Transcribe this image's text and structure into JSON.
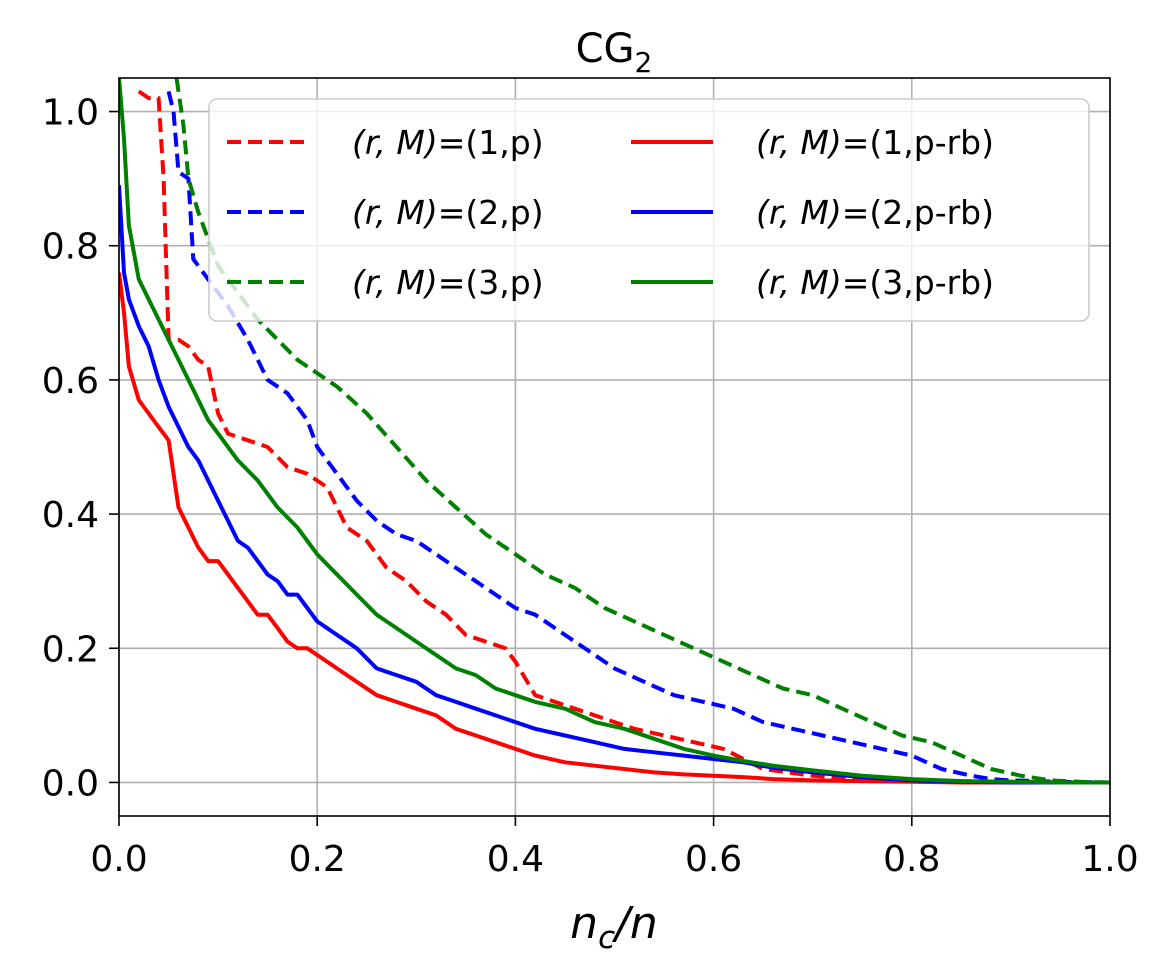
{
  "chart_data": {
    "type": "line",
    "title_base": "CG",
    "title_sub": "2",
    "xlabel_base": "n",
    "xlabel_sub": "c",
    "xlabel_tail": "/n",
    "ylabel": "",
    "xlim": [
      0.0,
      1.0
    ],
    "ylim": [
      -0.05,
      1.05
    ],
    "grid": true,
    "legend_position": "top-right",
    "legend_columns": 2,
    "xticks": [
      0.0,
      0.2,
      0.4,
      0.6,
      0.8,
      1.0
    ],
    "yticks": [
      0.0,
      0.2,
      0.4,
      0.6,
      0.8,
      1.0
    ],
    "xtick_labels": [
      "0.0",
      "0.2",
      "0.4",
      "0.6",
      "0.8",
      "1.0"
    ],
    "ytick_labels": [
      "0.0",
      "0.2",
      "0.4",
      "0.6",
      "0.8",
      "1.0"
    ],
    "series": [
      {
        "name": "(r,M)=(1,p)",
        "legend_math": "(r, M)",
        "legend_tail": "=(1,p)",
        "color": "#ff0000",
        "style": "dashed",
        "x": [
          0.02,
          0.03,
          0.04,
          0.045,
          0.05,
          0.06,
          0.07,
          0.08,
          0.09,
          0.1,
          0.11,
          0.13,
          0.15,
          0.17,
          0.19,
          0.21,
          0.23,
          0.25,
          0.27,
          0.29,
          0.31,
          0.33,
          0.35,
          0.37,
          0.39,
          0.4,
          0.42,
          0.44,
          0.46,
          0.48,
          0.5,
          0.52,
          0.55,
          0.58,
          0.61,
          0.65,
          0.7,
          0.75,
          0.8,
          0.85,
          0.9,
          0.95,
          1.0
        ],
        "y": [
          1.03,
          1.02,
          1.02,
          0.9,
          0.66,
          0.66,
          0.65,
          0.63,
          0.62,
          0.55,
          0.52,
          0.51,
          0.5,
          0.47,
          0.46,
          0.44,
          0.38,
          0.36,
          0.32,
          0.3,
          0.27,
          0.25,
          0.22,
          0.21,
          0.2,
          0.18,
          0.13,
          0.12,
          0.11,
          0.1,
          0.09,
          0.08,
          0.07,
          0.06,
          0.05,
          0.02,
          0.01,
          0.005,
          0.003,
          0.002,
          0.001,
          0.0,
          0.0
        ]
      },
      {
        "name": "(r,M)=(2,p)",
        "legend_math": "(r, M)",
        "legend_tail": "=(2,p)",
        "color": "#0000ff",
        "style": "dashed",
        "x": [
          0.05,
          0.055,
          0.06,
          0.07,
          0.075,
          0.08,
          0.09,
          0.1,
          0.11,
          0.13,
          0.15,
          0.17,
          0.19,
          0.2,
          0.22,
          0.24,
          0.26,
          0.28,
          0.3,
          0.32,
          0.34,
          0.36,
          0.38,
          0.4,
          0.42,
          0.44,
          0.46,
          0.48,
          0.5,
          0.53,
          0.56,
          0.59,
          0.62,
          0.65,
          0.68,
          0.71,
          0.74,
          0.77,
          0.8,
          0.83,
          0.86,
          0.88,
          0.9,
          0.95,
          1.0
        ],
        "y": [
          1.03,
          1.0,
          0.91,
          0.9,
          0.78,
          0.77,
          0.75,
          0.73,
          0.71,
          0.66,
          0.6,
          0.58,
          0.54,
          0.5,
          0.46,
          0.42,
          0.39,
          0.37,
          0.36,
          0.34,
          0.32,
          0.3,
          0.28,
          0.26,
          0.25,
          0.23,
          0.21,
          0.19,
          0.17,
          0.15,
          0.13,
          0.12,
          0.11,
          0.09,
          0.08,
          0.07,
          0.06,
          0.05,
          0.04,
          0.02,
          0.01,
          0.005,
          0.003,
          0.001,
          0.0
        ]
      },
      {
        "name": "(r,M)=(3,p)",
        "legend_math": "(r, M)",
        "legend_tail": "=(3,p)",
        "color": "#008000",
        "style": "dashed",
        "x": [
          0.058,
          0.06,
          0.065,
          0.07,
          0.08,
          0.09,
          0.1,
          0.12,
          0.14,
          0.16,
          0.18,
          0.2,
          0.22,
          0.25,
          0.28,
          0.31,
          0.34,
          0.37,
          0.4,
          0.43,
          0.46,
          0.49,
          0.52,
          0.55,
          0.58,
          0.61,
          0.64,
          0.67,
          0.7,
          0.73,
          0.76,
          0.79,
          0.82,
          0.85,
          0.88,
          0.91,
          0.94,
          0.97,
          1.0
        ],
        "y": [
          1.05,
          1.03,
          0.98,
          0.9,
          0.85,
          0.81,
          0.77,
          0.73,
          0.69,
          0.66,
          0.63,
          0.61,
          0.59,
          0.55,
          0.5,
          0.45,
          0.41,
          0.37,
          0.34,
          0.31,
          0.29,
          0.26,
          0.24,
          0.22,
          0.2,
          0.18,
          0.16,
          0.14,
          0.13,
          0.11,
          0.09,
          0.07,
          0.06,
          0.04,
          0.02,
          0.01,
          0.003,
          0.001,
          0.0
        ]
      },
      {
        "name": "(r,M)=(1,p-rb)",
        "legend_math": "(r, M)",
        "legend_tail": "=(1,p-rb)",
        "color": "#ff0000",
        "style": "solid",
        "x": [
          0.0,
          0.005,
          0.01,
          0.02,
          0.03,
          0.04,
          0.05,
          0.06,
          0.07,
          0.08,
          0.09,
          0.1,
          0.11,
          0.12,
          0.13,
          0.14,
          0.15,
          0.16,
          0.17,
          0.18,
          0.19,
          0.2,
          0.22,
          0.24,
          0.26,
          0.28,
          0.3,
          0.32,
          0.34,
          0.36,
          0.38,
          0.4,
          0.42,
          0.45,
          0.48,
          0.51,
          0.54,
          0.57,
          0.6,
          0.63,
          0.66,
          0.7,
          0.75,
          0.8,
          0.85,
          0.9,
          0.95,
          1.0
        ],
        "y": [
          0.76,
          0.7,
          0.62,
          0.57,
          0.55,
          0.53,
          0.51,
          0.41,
          0.38,
          0.35,
          0.33,
          0.33,
          0.31,
          0.29,
          0.27,
          0.25,
          0.25,
          0.23,
          0.21,
          0.2,
          0.2,
          0.19,
          0.17,
          0.15,
          0.13,
          0.12,
          0.11,
          0.1,
          0.08,
          0.07,
          0.06,
          0.05,
          0.04,
          0.03,
          0.025,
          0.02,
          0.015,
          0.012,
          0.01,
          0.008,
          0.005,
          0.003,
          0.002,
          0.001,
          0.0,
          0.0,
          0.0,
          0.0
        ]
      },
      {
        "name": "(r,M)=(2,p-rb)",
        "legend_math": "(r, M)",
        "legend_tail": "=(2,p-rb)",
        "color": "#0000ff",
        "style": "solid",
        "x": [
          0.0,
          0.005,
          0.01,
          0.02,
          0.03,
          0.04,
          0.05,
          0.06,
          0.07,
          0.08,
          0.09,
          0.1,
          0.11,
          0.12,
          0.13,
          0.14,
          0.15,
          0.16,
          0.17,
          0.18,
          0.19,
          0.2,
          0.22,
          0.24,
          0.26,
          0.28,
          0.3,
          0.32,
          0.34,
          0.36,
          0.38,
          0.4,
          0.42,
          0.45,
          0.48,
          0.51,
          0.54,
          0.57,
          0.6,
          0.63,
          0.66,
          0.7,
          0.75,
          0.8,
          0.85,
          0.9,
          0.95,
          1.0
        ],
        "y": [
          0.89,
          0.76,
          0.72,
          0.68,
          0.65,
          0.6,
          0.56,
          0.53,
          0.5,
          0.48,
          0.45,
          0.42,
          0.39,
          0.36,
          0.35,
          0.33,
          0.31,
          0.3,
          0.28,
          0.28,
          0.26,
          0.24,
          0.22,
          0.2,
          0.17,
          0.16,
          0.15,
          0.13,
          0.12,
          0.11,
          0.1,
          0.09,
          0.08,
          0.07,
          0.06,
          0.05,
          0.045,
          0.04,
          0.035,
          0.03,
          0.022,
          0.015,
          0.008,
          0.003,
          0.001,
          0.0,
          0.0,
          0.0
        ]
      },
      {
        "name": "(r,M)=(3,p-rb)",
        "legend_math": "(r, M)",
        "legend_tail": "=(3,p-rb)",
        "color": "#008000",
        "style": "solid",
        "x": [
          0.0,
          0.005,
          0.01,
          0.02,
          0.03,
          0.04,
          0.05,
          0.06,
          0.07,
          0.08,
          0.09,
          0.1,
          0.12,
          0.14,
          0.16,
          0.18,
          0.2,
          0.22,
          0.24,
          0.26,
          0.28,
          0.3,
          0.32,
          0.34,
          0.36,
          0.38,
          0.4,
          0.42,
          0.45,
          0.48,
          0.51,
          0.54,
          0.57,
          0.6,
          0.63,
          0.66,
          0.7,
          0.75,
          0.8,
          0.85,
          0.9,
          0.95,
          1.0
        ],
        "y": [
          1.05,
          0.96,
          0.83,
          0.75,
          0.72,
          0.69,
          0.66,
          0.63,
          0.6,
          0.57,
          0.54,
          0.52,
          0.48,
          0.45,
          0.41,
          0.38,
          0.34,
          0.31,
          0.28,
          0.25,
          0.23,
          0.21,
          0.19,
          0.17,
          0.16,
          0.14,
          0.13,
          0.12,
          0.11,
          0.09,
          0.08,
          0.065,
          0.05,
          0.04,
          0.032,
          0.025,
          0.018,
          0.01,
          0.005,
          0.002,
          0.001,
          0.0,
          0.0
        ]
      }
    ]
  }
}
